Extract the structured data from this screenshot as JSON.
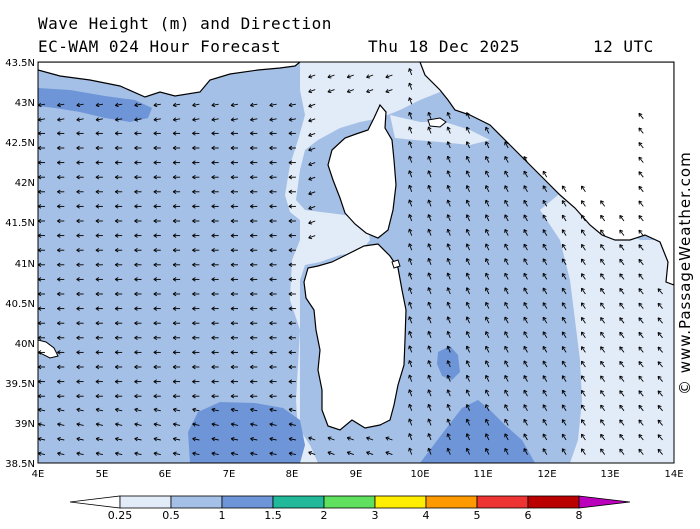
{
  "title_line1": "Wave Height (m) and Direction",
  "title_line2": "EC-WAM 024 Hour Forecast",
  "date": "Thu 18 Dec 2025",
  "time": "12 UTC",
  "credit": "© www.PassageWeather.com",
  "lat_labels": [
    "43.5N",
    "43N",
    "42.5N",
    "42N",
    "41.5N",
    "41N",
    "40.5N",
    "40N",
    "39.5N",
    "39N",
    "38.5N"
  ],
  "lon_labels": [
    "4E",
    "5E",
    "6E",
    "7E",
    "8E",
    "9E",
    "10E",
    "11E",
    "12E",
    "13E",
    "14E"
  ],
  "legend": {
    "ticks": [
      "0.25",
      "0.5",
      "1",
      "1.5",
      "2",
      "3",
      "4",
      "5",
      "6",
      "8"
    ],
    "colors": [
      "#e2ebf8",
      "#a5c0e6",
      "#6e95d8",
      "#22b89a",
      "#5fe05f",
      "#ffee00",
      "#ff9900",
      "#ee3333",
      "#bb0000",
      "#bb00bb"
    ]
  },
  "colors": {
    "sea_light": "#e2ebf8",
    "sea_mid": "#a5c0e6",
    "sea_dark": "#6e95d8",
    "land": "#ffffff",
    "coast": "#000000"
  },
  "wave_direction_field": {
    "west_basin": "arrows pointing west (waves toward W)",
    "tyrrhenian": "arrows pointing northwest",
    "southwest_corner": "arrows pointing west-southwest"
  }
}
